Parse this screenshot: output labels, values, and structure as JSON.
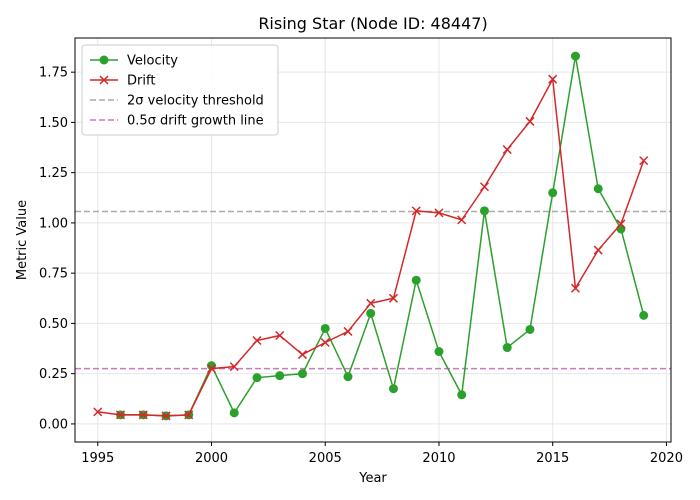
{
  "chart_data": {
    "type": "line",
    "title": "Rising Star (Node ID: 48447)",
    "xlabel": "Year",
    "ylabel": "Metric Value",
    "xlim": [
      1994,
      2020.2
    ],
    "ylim": [
      -0.09,
      1.92
    ],
    "xticks": [
      1995,
      2000,
      2005,
      2010,
      2015,
      2020
    ],
    "yticks": [
      0.0,
      0.25,
      0.5,
      0.75,
      1.0,
      1.25,
      1.5,
      1.75
    ],
    "ytick_labels": [
      "0.00",
      "0.25",
      "0.50",
      "0.75",
      "1.00",
      "1.25",
      "1.50",
      "1.75"
    ],
    "grid": true,
    "legend_position": "upper-left",
    "series": [
      {
        "name": "Velocity",
        "color": "#2ca02c",
        "marker": "circle",
        "x": [
          1996,
          1997,
          1998,
          1999,
          2000,
          2001,
          2002,
          2003,
          2004,
          2005,
          2006,
          2007,
          2008,
          2009,
          2010,
          2011,
          2012,
          2013,
          2014,
          2015,
          2016,
          2017,
          2018,
          2019
        ],
        "y": [
          0.045,
          0.045,
          0.04,
          0.045,
          0.29,
          0.055,
          0.23,
          0.24,
          0.25,
          0.475,
          0.235,
          0.55,
          0.175,
          0.715,
          0.36,
          0.145,
          1.06,
          0.38,
          0.47,
          1.15,
          1.83,
          1.17,
          0.97,
          0.54
        ]
      },
      {
        "name": "Drift",
        "color": "#d62728",
        "marker": "x",
        "x": [
          1995,
          1996,
          1997,
          1998,
          1999,
          2000,
          2001,
          2002,
          2003,
          2004,
          2005,
          2006,
          2007,
          2008,
          2009,
          2010,
          2011,
          2012,
          2013,
          2014,
          2015,
          2016,
          2017,
          2018,
          2019
        ],
        "y": [
          0.06,
          0.045,
          0.045,
          0.04,
          0.045,
          0.275,
          0.285,
          0.415,
          0.44,
          0.345,
          0.405,
          0.46,
          0.6,
          0.625,
          1.06,
          1.05,
          1.015,
          1.18,
          1.365,
          1.505,
          1.715,
          0.675,
          0.865,
          0.995,
          1.31
        ]
      }
    ],
    "reference_lines": [
      {
        "name": "2σ velocity threshold",
        "y": 1.057,
        "color": "#aaaaaa",
        "style": "dashed"
      },
      {
        "name": "0.5σ drift growth line",
        "y": 0.275,
        "color": "#c77cc0",
        "style": "dashed"
      }
    ]
  }
}
